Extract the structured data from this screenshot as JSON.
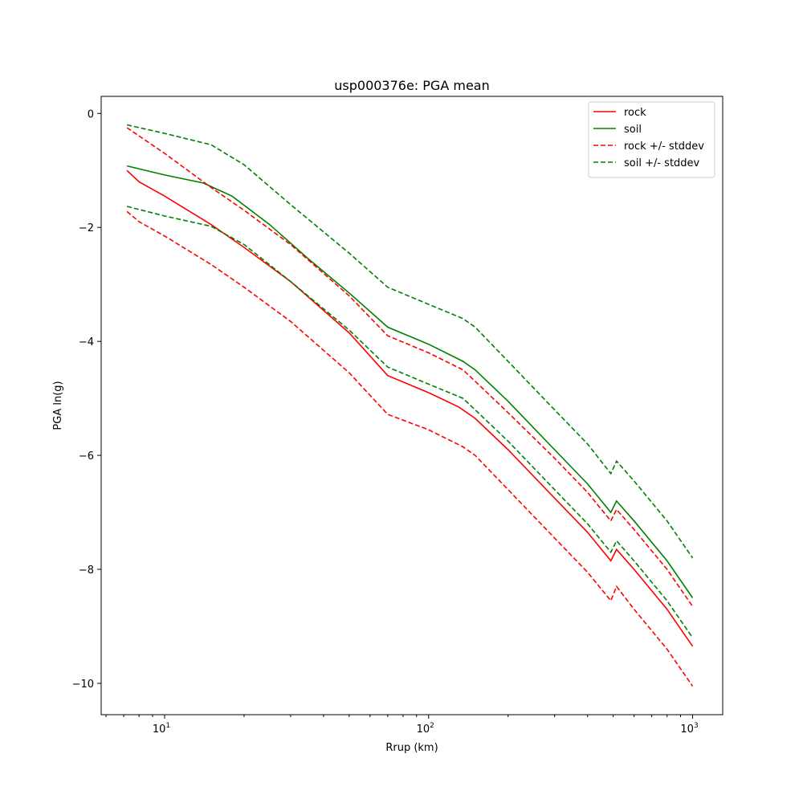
{
  "chart_data": {
    "type": "line",
    "title": "usp000376e: PGA mean",
    "xlabel": "Rrup (km)",
    "ylabel": "PGA ln(g)",
    "xscale": "log",
    "xlim": [
      5.75,
      1300
    ],
    "ylim": [
      -10.55,
      0.3
    ],
    "x_ticks": [
      {
        "value": 10,
        "base": "10",
        "exp": "1"
      },
      {
        "value": 100,
        "base": "10",
        "exp": "2"
      },
      {
        "value": 1000,
        "base": "10",
        "exp": "3"
      }
    ],
    "y_ticks": [
      {
        "value": 0,
        "label": "0"
      },
      {
        "value": -2,
        "label": "−2"
      },
      {
        "value": -4,
        "label": "−4"
      },
      {
        "value": -6,
        "label": "−6"
      },
      {
        "value": -8,
        "label": "−8"
      },
      {
        "value": -10,
        "label": "−10"
      }
    ],
    "grid": false,
    "legend_position": "top-right",
    "series": [
      {
        "name": "rock",
        "color": "#ff0000",
        "dash": "solid",
        "points": [
          [
            7.2,
            -1.0
          ],
          [
            8,
            -1.2
          ],
          [
            10,
            -1.45
          ],
          [
            15,
            -1.95
          ],
          [
            20,
            -2.35
          ],
          [
            30,
            -2.95
          ],
          [
            50,
            -3.85
          ],
          [
            70,
            -4.6
          ],
          [
            100,
            -4.9
          ],
          [
            130,
            -5.15
          ],
          [
            150,
            -5.35
          ],
          [
            200,
            -5.9
          ],
          [
            300,
            -6.75
          ],
          [
            400,
            -7.35
          ],
          [
            490,
            -7.85
          ],
          [
            515,
            -7.65
          ],
          [
            600,
            -8.0
          ],
          [
            800,
            -8.7
          ],
          [
            1000,
            -9.35
          ]
        ]
      },
      {
        "name": "soil",
        "color": "#008000",
        "dash": "solid",
        "points": [
          [
            7.2,
            -0.92
          ],
          [
            10,
            -1.08
          ],
          [
            14,
            -1.22
          ],
          [
            18,
            -1.45
          ],
          [
            25,
            -1.95
          ],
          [
            35,
            -2.55
          ],
          [
            50,
            -3.15
          ],
          [
            70,
            -3.75
          ],
          [
            100,
            -4.05
          ],
          [
            135,
            -4.35
          ],
          [
            150,
            -4.5
          ],
          [
            200,
            -5.05
          ],
          [
            300,
            -5.9
          ],
          [
            400,
            -6.5
          ],
          [
            490,
            -7.0
          ],
          [
            515,
            -6.8
          ],
          [
            600,
            -7.15
          ],
          [
            800,
            -7.85
          ],
          [
            1000,
            -8.5
          ]
        ]
      },
      {
        "name": "rock +/- stddev",
        "color": "#ff0000",
        "dash": "dashed",
        "points": [
          [
            7.2,
            -0.25
          ],
          [
            10,
            -0.7
          ],
          [
            15,
            -1.3
          ],
          [
            20,
            -1.7
          ],
          [
            30,
            -2.3
          ],
          [
            50,
            -3.2
          ],
          [
            70,
            -3.9
          ],
          [
            100,
            -4.2
          ],
          [
            135,
            -4.5
          ],
          [
            150,
            -4.7
          ],
          [
            200,
            -5.25
          ],
          [
            300,
            -6.05
          ],
          [
            400,
            -6.65
          ],
          [
            490,
            -7.15
          ],
          [
            515,
            -6.95
          ],
          [
            600,
            -7.3
          ],
          [
            800,
            -8.0
          ],
          [
            1000,
            -8.65
          ]
        ]
      },
      {
        "name": "rock +/- stddev (lower)",
        "color": "#ff0000",
        "dash": "dashed",
        "in_legend": false,
        "points": [
          [
            7.2,
            -1.72
          ],
          [
            8,
            -1.9
          ],
          [
            10,
            -2.15
          ],
          [
            15,
            -2.65
          ],
          [
            20,
            -3.05
          ],
          [
            30,
            -3.65
          ],
          [
            50,
            -4.55
          ],
          [
            70,
            -5.28
          ],
          [
            100,
            -5.55
          ],
          [
            135,
            -5.85
          ],
          [
            150,
            -6.0
          ],
          [
            200,
            -6.6
          ],
          [
            300,
            -7.45
          ],
          [
            400,
            -8.05
          ],
          [
            490,
            -8.55
          ],
          [
            515,
            -8.3
          ],
          [
            600,
            -8.7
          ],
          [
            800,
            -9.4
          ],
          [
            1000,
            -10.05
          ]
        ]
      },
      {
        "name": "soil +/- stddev",
        "color": "#008000",
        "dash": "dashed",
        "points": [
          [
            7.2,
            -0.2
          ],
          [
            10,
            -0.35
          ],
          [
            15,
            -0.55
          ],
          [
            20,
            -0.9
          ],
          [
            30,
            -1.6
          ],
          [
            50,
            -2.45
          ],
          [
            70,
            -3.05
          ],
          [
            100,
            -3.35
          ],
          [
            135,
            -3.6
          ],
          [
            150,
            -3.75
          ],
          [
            200,
            -4.35
          ],
          [
            300,
            -5.2
          ],
          [
            400,
            -5.8
          ],
          [
            490,
            -6.32
          ],
          [
            515,
            -6.1
          ],
          [
            600,
            -6.45
          ],
          [
            800,
            -7.15
          ],
          [
            1000,
            -7.8
          ]
        ]
      },
      {
        "name": "soil +/- stddev (lower)",
        "color": "#008000",
        "dash": "dashed",
        "in_legend": false,
        "points": [
          [
            7.2,
            -1.63
          ],
          [
            10,
            -1.8
          ],
          [
            15,
            -1.98
          ],
          [
            20,
            -2.3
          ],
          [
            30,
            -2.95
          ],
          [
            50,
            -3.8
          ],
          [
            70,
            -4.45
          ],
          [
            100,
            -4.75
          ],
          [
            135,
            -5.0
          ],
          [
            150,
            -5.2
          ],
          [
            200,
            -5.75
          ],
          [
            300,
            -6.6
          ],
          [
            400,
            -7.2
          ],
          [
            490,
            -7.7
          ],
          [
            515,
            -7.5
          ],
          [
            600,
            -7.85
          ],
          [
            800,
            -8.55
          ],
          [
            1000,
            -9.2
          ]
        ]
      }
    ]
  }
}
